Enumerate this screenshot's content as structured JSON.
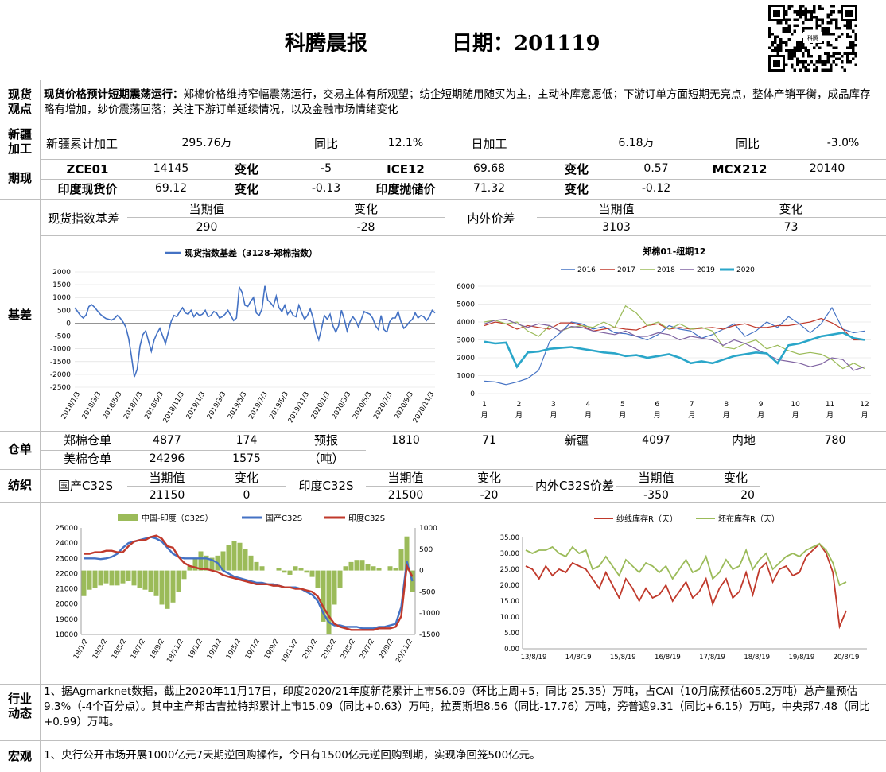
{
  "header": {
    "title": "科腾晨报",
    "date": "日期：201119",
    "qr_brand": "科腾"
  },
  "spot_view": {
    "label": "现货观点",
    "headline": "现货价格预计短期震荡运行：",
    "body": "郑棉价格维持窄幅震荡运行，交易主体有所观望；纺企短期随用随买为主，主动补库意愿低；下游订单方面短期无亮点，整体产销平衡，成品库存略有增加，纱价震荡回落；关注下游订单延续情况，以及金融市场情绪变化"
  },
  "xinjiang": {
    "label": "新疆加工",
    "cum_label": "新疆累计加工",
    "cum_value": "295.76万",
    "yoy1_label": "同比",
    "yoy1_value": "12.1%",
    "daily_label": "日加工",
    "daily_value": "6.18万",
    "yoy2_label": "同比",
    "yoy2_value": "-3.0%"
  },
  "futures": {
    "label": "期现",
    "row1": [
      "ZCE01",
      "14145",
      "变化",
      "-5",
      "ICE12",
      "69.68",
      "变化",
      "0.57",
      "MCX212",
      "20140"
    ],
    "row2": [
      "印度现货价",
      "69.12",
      "变化",
      "-0.13",
      "印度抛储价",
      "71.32",
      "变化",
      "-0.12"
    ]
  },
  "basis": {
    "label": "基差",
    "index_label": "现货指数基差",
    "cur_label": "当期值",
    "chg_label": "变化",
    "index_cur": "290",
    "index_chg": "-28",
    "inout_label": "内外价差",
    "inout_cur_label": "当期值",
    "inout_chg_label": "变化",
    "inout_cur": "3103",
    "inout_chg": "73"
  },
  "warehouse": {
    "label": "仓单",
    "zc_label": "郑棉仓单",
    "zc_value": "4877",
    "zc_chg": "174",
    "forecast_label": "预报",
    "unit": "（吨）",
    "forecast_value": "1810",
    "forecast_chg": "71",
    "xj_label": "新疆",
    "xj_value": "4097",
    "nd_label": "内地",
    "nd_value": "780",
    "us_label": "美棉仓单",
    "us_value": "24296",
    "us_chg": "1575"
  },
  "spinning": {
    "label": "纺织",
    "cn_label": "国产C32S",
    "cur_label": "当期值",
    "chg_label": "变化",
    "cn_cur": "21150",
    "cn_chg": "0",
    "in_label": "印度C32S",
    "in_cur_label": "当期值",
    "in_chg_label": "变化",
    "in_cur": "21500",
    "in_chg": "-20",
    "spread_label": "内外C32S价差",
    "spread_cur_label": "当期值",
    "spread_chg_label": "变化",
    "spread_cur": "-350",
    "spread_chg": "20"
  },
  "industry": {
    "label": "行业动态",
    "text": "1、据Agmarknet数据，截止2020年11月17日，印度2020/21年度新花累计上市56.09（环比上周+5，同比-25.35）万吨，占CAI（10月底预估605.2万吨）总产量预估9.3%（-4个百分点）。其中主产邦古吉拉特邦累计上市15.09（同比+0.63）万吨，拉贾斯坦8.56（同比-17.76）万吨，旁普遮9.31（同比+6.15）万吨，中央邦7.48（同比+0.99）万吨。"
  },
  "macro": {
    "label": "宏观",
    "text": "1、央行公开市场开展1000亿元7天期逆回购操作，今日有1500亿元逆回购到期，实现净回笼500亿元。"
  },
  "colors": {
    "blue": "#4472c4",
    "red": "#c0392b",
    "green": "#9bbb59",
    "purple": "#8064a2",
    "cyan": "#2aa6c9",
    "grid": "#d9d9d9",
    "line": "#bfbfbf"
  },
  "chart_data": [
    {
      "type": "line",
      "title": "",
      "series": [
        {
          "name": "现货指数基差（3128-郑棉指数）"
        }
      ],
      "x_ticks": [
        "2018/1/3",
        "2018/3/3",
        "2018/5/3",
        "2018/7/3",
        "2018/9/3",
        "2018/11/3",
        "2019/1/3",
        "2019/3/3",
        "2019/5/3",
        "2019/7/3",
        "2019/9/3",
        "2019/11/3",
        "2020/1/3",
        "2020/3/3",
        "2020/5/3",
        "2020/7/3",
        "2020/9/3",
        "2020/11/3"
      ],
      "ylim": [
        -2500,
        2000
      ],
      "y_ticks": [
        2000,
        1500,
        1000,
        500,
        0,
        -500,
        -1000,
        -1500,
        -2000,
        -2500
      ],
      "values": [
        600,
        450,
        300,
        200,
        320,
        650,
        720,
        620,
        480,
        350,
        250,
        180,
        150,
        120,
        180,
        300,
        200,
        50,
        -150,
        -600,
        -1300,
        -2100,
        -1800,
        -900,
        -450,
        -300,
        -700,
        -1100,
        -650,
        -400,
        -200,
        -500,
        -800,
        -350,
        80,
        300,
        250,
        450,
        600,
        400,
        350,
        500,
        250,
        400,
        300,
        350,
        500,
        250,
        300,
        450,
        400,
        200,
        250,
        350,
        500,
        300,
        100,
        200,
        1400,
        1200,
        700,
        650,
        850,
        1000,
        400,
        300,
        550,
        1450,
        900,
        800,
        650,
        1050,
        600,
        450,
        700,
        350,
        500,
        300,
        250,
        700,
        400,
        150,
        300,
        550,
        200,
        -350,
        -650,
        -200,
        300,
        150,
        350,
        -100,
        -350,
        -100,
        500,
        150,
        -300,
        50,
        250,
        100,
        -150,
        150,
        450,
        400,
        350,
        200,
        -100,
        -250,
        300,
        -250,
        -350,
        50,
        200,
        200,
        450,
        50,
        -200,
        -100,
        50,
        150,
        400,
        200,
        300,
        250,
        100,
        250,
        500,
        400
      ]
    },
    {
      "type": "line",
      "title": "郑棉01-纽期12",
      "x_ticks": [
        "1月",
        "2月",
        "3月",
        "4月",
        "5月",
        "6月",
        "7月",
        "8月",
        "9月",
        "10月",
        "11月",
        "12月"
      ],
      "ylim": [
        0,
        6000
      ],
      "y_ticks": [
        6000,
        5000,
        4000,
        3000,
        2000,
        1000,
        0
      ],
      "series": [
        {
          "name": "2016",
          "values": [
            700,
            650,
            500,
            650,
            850,
            1300,
            2900,
            3400,
            4000,
            3900,
            3600,
            3750,
            3400,
            3350,
            3200,
            3000,
            3300,
            3800,
            3600,
            3500,
            3100,
            3300,
            3600,
            3900,
            3200,
            3500,
            4000,
            3700,
            4300,
            3900,
            3400,
            3900,
            4800,
            3600,
            3400,
            3500
          ]
        },
        {
          "name": "2017",
          "values": [
            3800,
            4000,
            3900,
            3600,
            3800,
            3700,
            3600,
            3950,
            3950,
            3800,
            3500,
            3600,
            3700,
            3600,
            3550,
            3800,
            3900,
            3600,
            3700,
            3600,
            3650,
            3700,
            3600,
            3800,
            3900,
            3700,
            3700,
            3800,
            3800,
            3900,
            4000,
            4200,
            3950,
            3600,
            3000,
            3000
          ]
        },
        {
          "name": "2018",
          "values": [
            4000,
            4100,
            3900,
            4000,
            3500,
            3200,
            3800,
            3500,
            3700,
            3800,
            3700,
            4000,
            3700,
            4900,
            4500,
            3800,
            4000,
            3600,
            3900,
            3600,
            3700,
            3500,
            2600,
            2500,
            2800,
            3000,
            2500,
            2700,
            2400,
            2200,
            2300,
            2200,
            1900,
            1400,
            1700,
            1400
          ]
        },
        {
          "name": "2019",
          "values": [
            3900,
            4100,
            4150,
            3900,
            3700,
            3900,
            3800,
            3500,
            3750,
            3700,
            3500,
            3400,
            3300,
            3500,
            3200,
            3200,
            3400,
            3300,
            3000,
            3200,
            3100,
            3000,
            2700,
            3000,
            2800,
            2500,
            2200,
            1900,
            1800,
            1700,
            1500,
            1650,
            2000,
            1900,
            1300,
            1500
          ]
        },
        {
          "name": "2020",
          "values": [
            2900,
            2800,
            2850,
            1500,
            2300,
            2350,
            2500,
            2550,
            2600,
            2500,
            2400,
            2300,
            2250,
            2100,
            2150,
            2000,
            2100,
            2200,
            2000,
            1700,
            1800,
            1700,
            1900,
            2100,
            2200,
            2300,
            2250,
            1700,
            2700,
            2800,
            3000,
            3200,
            3300,
            3400,
            3100,
            3000
          ]
        }
      ]
    },
    {
      "type": "line",
      "title": "",
      "series": [
        {
          "name": "中国-印度（C32S）",
          "type": "bar",
          "axis": "right",
          "values": [
            -600,
            -450,
            -400,
            -350,
            -300,
            -350,
            -350,
            -300,
            -250,
            -350,
            -400,
            -450,
            -500,
            -600,
            -800,
            -900,
            -750,
            -500,
            -200,
            100,
            300,
            450,
            350,
            300,
            350,
            450,
            600,
            700,
            650,
            500,
            350,
            200,
            100,
            0,
            0,
            50,
            -50,
            -100,
            100,
            50,
            -50,
            -150,
            -400,
            -1200,
            -1500,
            -800,
            -400,
            100,
            200,
            250,
            250,
            150,
            100,
            50,
            0,
            100,
            50,
            500,
            800,
            -500
          ]
        },
        {
          "name": "国产C32S",
          "axis": "left",
          "values": [
            23000,
            23000,
            23000,
            22950,
            23000,
            23100,
            23300,
            23700,
            24000,
            24100,
            24200,
            24300,
            24400,
            24300,
            24100,
            23700,
            23300,
            23100,
            23000,
            23000,
            23000,
            23000,
            23000,
            22900,
            22700,
            22200,
            22000,
            21800,
            21700,
            21600,
            21500,
            21400,
            21400,
            21300,
            21300,
            21200,
            21100,
            21100,
            21100,
            21000,
            20800,
            20600,
            20200,
            19400,
            18800,
            18600,
            18600,
            18500,
            18500,
            18500,
            18400,
            18400,
            18400,
            18500,
            18500,
            18600,
            18700,
            19800,
            22800,
            21500
          ]
        },
        {
          "name": "印度C32S",
          "axis": "left",
          "values": [
            23300,
            23300,
            23400,
            23400,
            23500,
            23500,
            23400,
            23400,
            23800,
            24100,
            24200,
            24200,
            24400,
            24500,
            24300,
            23800,
            23700,
            23100,
            22700,
            22500,
            22400,
            22300,
            22300,
            22200,
            22100,
            21900,
            21800,
            21700,
            21600,
            21500,
            21400,
            21300,
            21300,
            21300,
            21200,
            21200,
            21100,
            21100,
            21000,
            21000,
            20900,
            20800,
            20500,
            19800,
            19200,
            18700,
            18500,
            18400,
            18300,
            18300,
            18300,
            18300,
            18300,
            18400,
            18400,
            18400,
            18500,
            19200,
            22500,
            21800
          ]
        }
      ],
      "x_ticks": [
        "18/1/2",
        "18/3/2",
        "18/5/2",
        "18/7/2",
        "18/9/2",
        "18/11/2",
        "19/1/2",
        "19/3/2",
        "19/5/2",
        "19/7/2",
        "19/9/2",
        "19/11/2",
        "20/1/2",
        "20/3/2",
        "20/5/2",
        "20/7/2",
        "20/9/2",
        "20/11/2"
      ],
      "ylim_left": [
        18000,
        25000
      ],
      "y_ticks_left": [
        25000,
        24000,
        23000,
        22000,
        21000,
        20000,
        19000,
        18000
      ],
      "ylim_right": [
        -1500,
        1000
      ],
      "y_ticks_right": [
        1000,
        500,
        0,
        -500,
        -1000,
        -1500
      ]
    },
    {
      "type": "line",
      "title": "",
      "series": [
        {
          "name": "纱线库存R（天）",
          "values": [
            26,
            25,
            22,
            26,
            23,
            25,
            24,
            27,
            26,
            25,
            22,
            19,
            24,
            20,
            16,
            22,
            19,
            15,
            19,
            16,
            17,
            20,
            15,
            18,
            21,
            16,
            18,
            22,
            14,
            19,
            22,
            16,
            18,
            24,
            17,
            25,
            27,
            21,
            25,
            26,
            23,
            24,
            29,
            31,
            33,
            30,
            24,
            7,
            12
          ]
        },
        {
          "name": "坯布库存R（天）",
          "values": [
            31,
            30,
            31,
            31,
            32,
            30,
            29,
            32,
            30,
            31,
            25,
            26,
            29,
            26,
            23,
            28,
            26,
            24,
            27,
            26,
            24,
            26,
            22,
            25,
            28,
            24,
            25,
            29,
            22,
            24,
            28,
            25,
            26,
            31,
            25,
            28,
            30,
            25,
            27,
            29,
            30,
            29,
            31,
            32,
            33,
            31,
            27,
            20,
            21
          ]
        }
      ],
      "x_ticks": [
        "13/8/19",
        "14/8/19",
        "15/8/19",
        "16/8/19",
        "17/8/19",
        "18/8/19",
        "19/8/19",
        "20/8/19"
      ],
      "ylim": [
        0,
        35
      ],
      "y_ticks": [
        "35.00",
        "30.00",
        "25.00",
        "20.00",
        "15.00",
        "10.00",
        "5.00",
        "0.00"
      ]
    }
  ]
}
